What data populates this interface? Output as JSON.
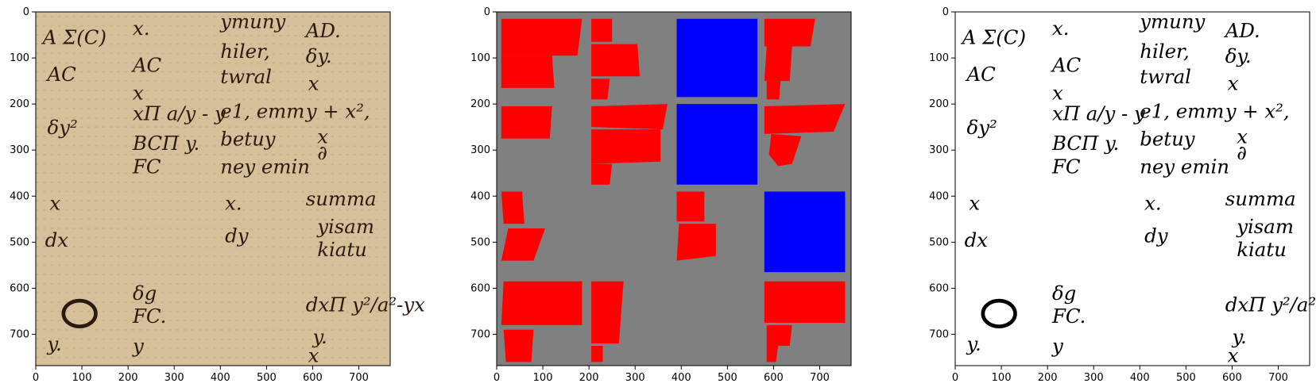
{
  "axis": {
    "ticks": [
      "0",
      "100",
      "200",
      "300",
      "400",
      "500",
      "600",
      "700"
    ]
  },
  "panels": [
    {
      "name": "original-manuscript",
      "colors": {
        "paper": "#d5c09a",
        "ink": "#2a1a10"
      },
      "glyphs": [
        {
          "text": "A Σ(C)",
          "x": 15,
          "y": 70
        },
        {
          "text": "AC",
          "x": 25,
          "y": 150
        },
        {
          "text": "δy²",
          "x": 25,
          "y": 265
        },
        {
          "text": "x",
          "x": 30,
          "y": 430
        },
        {
          "text": "dx",
          "x": 20,
          "y": 510
        },
        {
          "text": "y.",
          "x": 25,
          "y": 735
        },
        {
          "text": "x.",
          "x": 210,
          "y": 50
        },
        {
          "text": "AC",
          "x": 210,
          "y": 130
        },
        {
          "text": "x",
          "x": 210,
          "y": 190
        },
        {
          "text": "xΠ a/y - y",
          "x": 210,
          "y": 235
        },
        {
          "text": "BCΠ y.",
          "x": 210,
          "y": 300
        },
        {
          "text": "FC",
          "x": 210,
          "y": 350
        },
        {
          "text": "δg",
          "x": 210,
          "y": 625
        },
        {
          "text": "FC.",
          "x": 210,
          "y": 675
        },
        {
          "text": "y",
          "x": 210,
          "y": 740
        },
        {
          "text": "ymuny",
          "x": 400,
          "y": 35
        },
        {
          "text": "hiler,",
          "x": 400,
          "y": 100
        },
        {
          "text": "twral",
          "x": 400,
          "y": 155
        },
        {
          "text": "e1, emm",
          "x": 400,
          "y": 230
        },
        {
          "text": "betuy",
          "x": 400,
          "y": 290
        },
        {
          "text": "ney emin",
          "x": 400,
          "y": 350
        },
        {
          "text": "x.",
          "x": 410,
          "y": 430
        },
        {
          "text": "dy",
          "x": 410,
          "y": 500
        },
        {
          "text": "AD.",
          "x": 585,
          "y": 55
        },
        {
          "text": "δy.",
          "x": 585,
          "y": 110
        },
        {
          "text": "x",
          "x": 590,
          "y": 170
        },
        {
          "text": "y + x²,",
          "x": 585,
          "y": 230
        },
        {
          "text": "x",
          "x": 610,
          "y": 285
        },
        {
          "text": "∂",
          "x": 610,
          "y": 320
        },
        {
          "text": "summa",
          "x": 585,
          "y": 420
        },
        {
          "text": "yisam",
          "x": 610,
          "y": 480
        },
        {
          "text": "kiatu",
          "x": 610,
          "y": 530
        },
        {
          "text": "dxΠ y²/a²-yx",
          "x": 585,
          "y": 650
        },
        {
          "text": "y.",
          "x": 600,
          "y": 720
        },
        {
          "text": "x",
          "x": 590,
          "y": 760
        }
      ],
      "blob": {
        "cx": 95,
        "cy": 655
      }
    },
    {
      "name": "segmentation-mask",
      "colors": {
        "background": "#808080",
        "text_region": "#ff0000",
        "figure_region": "#0000ff"
      },
      "regions": [
        {
          "type": "text",
          "points": [
            [
              10,
              15
            ],
            [
              185,
              15
            ],
            [
              175,
              95
            ],
            [
              10,
              95
            ]
          ]
        },
        {
          "type": "text",
          "points": [
            [
              10,
              95
            ],
            [
              120,
              95
            ],
            [
              125,
              165
            ],
            [
              10,
              165
            ]
          ]
        },
        {
          "type": "text",
          "points": [
            [
              10,
              205
            ],
            [
              120,
              205
            ],
            [
              115,
              275
            ],
            [
              10,
              275
            ]
          ]
        },
        {
          "type": "text",
          "points": [
            [
              10,
              390
            ],
            [
              55,
              390
            ],
            [
              60,
              460
            ],
            [
              15,
              460
            ]
          ]
        },
        {
          "type": "text",
          "points": [
            [
              25,
              470
            ],
            [
              105,
              470
            ],
            [
              80,
              540
            ],
            [
              10,
              540
            ]
          ]
        },
        {
          "type": "text",
          "points": [
            [
              15,
              585
            ],
            [
              185,
              585
            ],
            [
              185,
              680
            ],
            [
              10,
              680
            ]
          ]
        },
        {
          "type": "text",
          "points": [
            [
              15,
              690
            ],
            [
              80,
              690
            ],
            [
              75,
              760
            ],
            [
              20,
              760
            ]
          ]
        },
        {
          "type": "text",
          "points": [
            [
              205,
              15
            ],
            [
              250,
              15
            ],
            [
              250,
              65
            ],
            [
              205,
              65
            ]
          ]
        },
        {
          "type": "text",
          "points": [
            [
              205,
              70
            ],
            [
              305,
              70
            ],
            [
              310,
              140
            ],
            [
              205,
              140
            ]
          ]
        },
        {
          "type": "text",
          "points": [
            [
              205,
              145
            ],
            [
              245,
              145
            ],
            [
              240,
              190
            ],
            [
              205,
              190
            ]
          ]
        },
        {
          "type": "text",
          "points": [
            [
              205,
              205
            ],
            [
              370,
              200
            ],
            [
              360,
              255
            ],
            [
              205,
              250
            ]
          ]
        },
        {
          "type": "text",
          "points": [
            [
              205,
              255
            ],
            [
              355,
              255
            ],
            [
              355,
              325
            ],
            [
              205,
              330
            ]
          ]
        },
        {
          "type": "text",
          "points": [
            [
              205,
              330
            ],
            [
              250,
              330
            ],
            [
              245,
              375
            ],
            [
              205,
              375
            ]
          ]
        },
        {
          "type": "text",
          "points": [
            [
              205,
              585
            ],
            [
              275,
              585
            ],
            [
              270,
              650
            ],
            [
              205,
              650
            ]
          ]
        },
        {
          "type": "text",
          "points": [
            [
              205,
              650
            ],
            [
              270,
              650
            ],
            [
              265,
              720
            ],
            [
              205,
              720
            ]
          ]
        },
        {
          "type": "text",
          "points": [
            [
              205,
              725
            ],
            [
              230,
              725
            ],
            [
              230,
              760
            ],
            [
              205,
              760
            ]
          ]
        },
        {
          "type": "figure",
          "points": [
            [
              390,
              15
            ],
            [
              565,
              15
            ],
            [
              565,
              185
            ],
            [
              390,
              185
            ]
          ]
        },
        {
          "type": "figure",
          "points": [
            [
              390,
              200
            ],
            [
              565,
              200
            ],
            [
              565,
              375
            ],
            [
              390,
              375
            ]
          ]
        },
        {
          "type": "text",
          "points": [
            [
              390,
              390
            ],
            [
              450,
              390
            ],
            [
              450,
              455
            ],
            [
              390,
              455
            ]
          ]
        },
        {
          "type": "text",
          "points": [
            [
              395,
              460
            ],
            [
              475,
              460
            ],
            [
              475,
              530
            ],
            [
              390,
              540
            ]
          ]
        },
        {
          "type": "text",
          "points": [
            [
              580,
              15
            ],
            [
              690,
              15
            ],
            [
              680,
              75
            ],
            [
              580,
              75
            ]
          ]
        },
        {
          "type": "text",
          "points": [
            [
              585,
              75
            ],
            [
              640,
              75
            ],
            [
              635,
              150
            ],
            [
              580,
              150
            ]
          ]
        },
        {
          "type": "text",
          "points": [
            [
              585,
              150
            ],
            [
              615,
              150
            ],
            [
              612,
              190
            ],
            [
              585,
              190
            ]
          ]
        },
        {
          "type": "text",
          "points": [
            [
              580,
              205
            ],
            [
              755,
              200
            ],
            [
              730,
              260
            ],
            [
              580,
              265
            ]
          ]
        },
        {
          "type": "text",
          "points": [
            [
              595,
              265
            ],
            [
              660,
              270
            ],
            [
              640,
              330
            ],
            [
              610,
              335
            ],
            [
              590,
              310
            ]
          ]
        },
        {
          "type": "figure",
          "points": [
            [
              580,
              390
            ],
            [
              755,
              390
            ],
            [
              755,
              565
            ],
            [
              580,
              565
            ]
          ]
        },
        {
          "type": "text",
          "points": [
            [
              580,
              585
            ],
            [
              755,
              585
            ],
            [
              755,
              675
            ],
            [
              580,
              675
            ]
          ]
        },
        {
          "type": "text",
          "points": [
            [
              585,
              680
            ],
            [
              640,
              680
            ],
            [
              635,
              725
            ],
            [
              585,
              725
            ]
          ]
        },
        {
          "type": "text",
          "points": [
            [
              585,
              725
            ],
            [
              610,
              725
            ],
            [
              605,
              760
            ],
            [
              585,
              760
            ]
          ]
        }
      ]
    },
    {
      "name": "binarized-manuscript",
      "colors": {
        "paper": "#ffffff",
        "ink": "#000000"
      }
    }
  ]
}
